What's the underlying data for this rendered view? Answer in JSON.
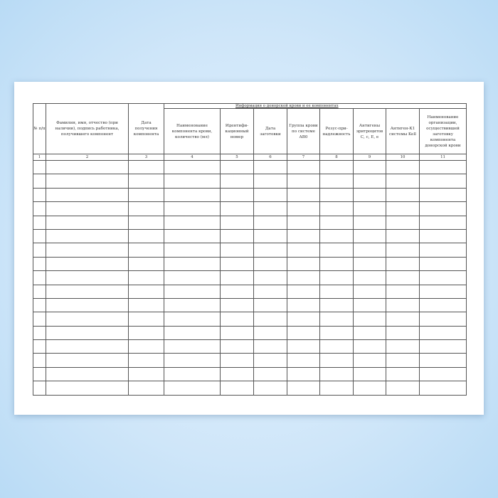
{
  "table": {
    "group_header": "Информация о донорской крови и ее компонентах",
    "columns": [
      "№ п/п",
      "Фамилия, имя, отчество (при наличии), подпись работника, получившего компонент",
      "Дата получения компонента",
      "Наименование компонента крови, количество (мл)",
      "Идентифи-кационный номер",
      "Дата заготовки",
      "Группа крови по системе АВ0",
      "Резус-при-надлежность",
      "Антигены эритроцитов С, с, Е, е",
      "Антиген-К1 системы Kell",
      "Наименование организации, осуществившей заготовку компонента донорской крови"
    ],
    "column_numbers": [
      "1",
      "2",
      "3",
      "4",
      "5",
      "6",
      "7",
      "8",
      "9",
      "10",
      "11"
    ],
    "empty_row_count": 17
  }
}
